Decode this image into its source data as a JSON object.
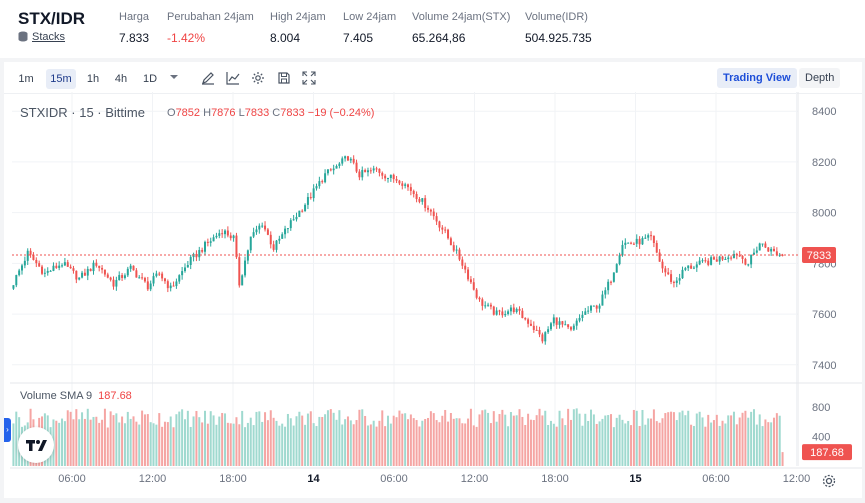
{
  "header": {
    "pair": "STX/IDR",
    "sub_label": "Stacks",
    "stats": [
      {
        "label": "Harga",
        "value": "7.833",
        "negative": false
      },
      {
        "label": "Perubahan 24jam",
        "value": "-1.42%",
        "negative": true
      },
      {
        "label": "High 24jam",
        "value": "8.004",
        "negative": false
      },
      {
        "label": "Low 24jam",
        "value": "7.405",
        "negative": false
      },
      {
        "label": "Volume 24jam(STX)",
        "value": "65.264,86",
        "negative": false
      },
      {
        "label": "Volume(IDR)",
        "value": "504.925.735",
        "negative": false
      }
    ]
  },
  "toolbar": {
    "timeframes": [
      "1m",
      "15m",
      "1h",
      "4h",
      "1D"
    ],
    "active_timeframe": "15m",
    "tools": [
      "pencil-icon",
      "indicator-icon",
      "gear-icon",
      "save-icon",
      "fullscreen-icon"
    ],
    "trading_view_label": "Trading View",
    "depth_label": "Depth"
  },
  "legend": {
    "symbol": "STXIDR · 15 · Bittime",
    "o_label": "O",
    "o": "7852",
    "h_label": "H",
    "h": "7876",
    "l_label": "L",
    "l": "7833",
    "c_label": "C",
    "c": "7833",
    "change": "−19 (−0.24%)"
  },
  "volume_legend": {
    "label": "Volume SMA 9",
    "value": "187.68"
  },
  "colors": {
    "up": "#26a69a",
    "down": "#ef5350",
    "vol_up": "#9fd9cf",
    "vol_down": "#f5a5a3",
    "price_line": "#ef5350",
    "accent": "#1d4ed8"
  },
  "chart_data": {
    "type": "candlestick",
    "title": "STXIDR · 15 · Bittime",
    "price_axis_ticks": [
      8400,
      8200,
      8000,
      7800,
      7600,
      7400
    ],
    "price_range": [
      7340,
      8460
    ],
    "last_price": "7833",
    "volume_axis_ticks": [
      800,
      400
    ],
    "volume_range": [
      0,
      1000
    ],
    "volume_sma_label": "187.68",
    "time_labels": [
      {
        "label": "06:00",
        "bold": false
      },
      {
        "label": "12:00",
        "bold": false
      },
      {
        "label": "18:00",
        "bold": false
      },
      {
        "label": "14",
        "bold": true
      },
      {
        "label": "06:00",
        "bold": false
      },
      {
        "label": "12:00",
        "bold": false
      },
      {
        "label": "18:00",
        "bold": false
      },
      {
        "label": "15",
        "bold": true
      },
      {
        "label": "06:00",
        "bold": false
      },
      {
        "label": "12:00",
        "bold": false
      }
    ],
    "price_path": [
      [
        0,
        7700
      ],
      [
        6,
        7840
      ],
      [
        12,
        7760
      ],
      [
        18,
        7800
      ],
      [
        24,
        7740
      ],
      [
        30,
        7800
      ],
      [
        36,
        7720
      ],
      [
        42,
        7780
      ],
      [
        48,
        7710
      ],
      [
        52,
        7760
      ],
      [
        56,
        7700
      ],
      [
        62,
        7800
      ],
      [
        68,
        7870
      ],
      [
        74,
        7930
      ],
      [
        78,
        7900
      ],
      [
        80,
        7720
      ],
      [
        84,
        7900
      ],
      [
        88,
        7960
      ],
      [
        92,
        7860
      ],
      [
        98,
        7960
      ],
      [
        104,
        8050
      ],
      [
        110,
        8150
      ],
      [
        114,
        8180
      ],
      [
        118,
        8220
      ],
      [
        122,
        8150
      ],
      [
        128,
        8170
      ],
      [
        132,
        8140
      ],
      [
        136,
        8130
      ],
      [
        140,
        8090
      ],
      [
        146,
        8020
      ],
      [
        152,
        7920
      ],
      [
        158,
        7800
      ],
      [
        164,
        7650
      ],
      [
        170,
        7600
      ],
      [
        176,
        7620
      ],
      [
        182,
        7560
      ],
      [
        186,
        7500
      ],
      [
        190,
        7580
      ],
      [
        196,
        7530
      ],
      [
        200,
        7600
      ],
      [
        206,
        7640
      ],
      [
        210,
        7740
      ],
      [
        214,
        7880
      ],
      [
        218,
        7880
      ],
      [
        224,
        7900
      ],
      [
        228,
        7780
      ],
      [
        232,
        7720
      ],
      [
        236,
        7780
      ],
      [
        242,
        7800
      ],
      [
        248,
        7820
      ],
      [
        254,
        7840
      ],
      [
        258,
        7800
      ],
      [
        262,
        7880
      ],
      [
        266,
        7850
      ],
      [
        269,
        7833
      ]
    ]
  }
}
